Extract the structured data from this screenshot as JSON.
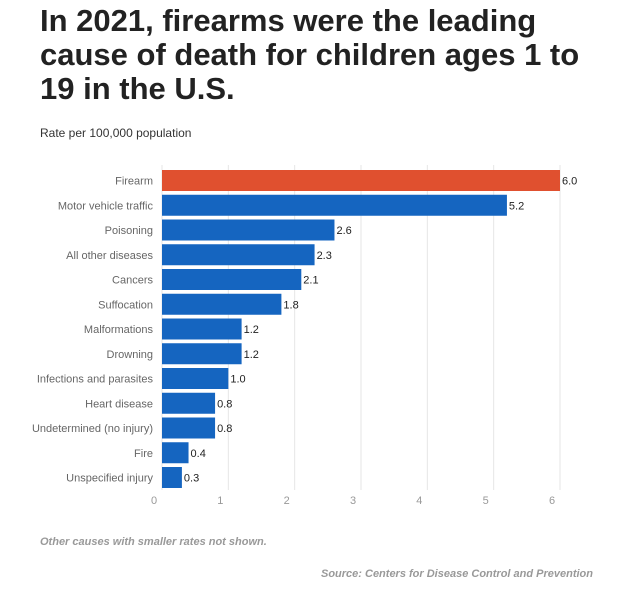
{
  "chart_data": {
    "type": "bar",
    "orientation": "horizontal",
    "title": "In 2021, firearms were the leading cause of death for children ages 1 to 19 in the U.S.",
    "subtitle": "Rate per 100,000 population",
    "categories": [
      "Firearm",
      "Motor vehicle traffic",
      "Poisoning",
      "All other diseases",
      "Cancers",
      "Suffocation",
      "Malformations",
      "Drowning",
      "Infections and parasites",
      "Heart disease",
      "Undetermined (no injury)",
      "Fire",
      "Unspecified injury"
    ],
    "values": [
      6.0,
      5.2,
      2.6,
      2.3,
      2.1,
      1.8,
      1.2,
      1.2,
      1.0,
      0.8,
      0.8,
      0.4,
      0.3
    ],
    "value_labels": [
      "6.0",
      "5.2",
      "2.6",
      "2.3",
      "2.1",
      "1.8",
      "1.2",
      "1.2",
      "1.0",
      "0.8",
      "0.8",
      "0.4",
      "0.3"
    ],
    "highlight_index": 0,
    "colors": {
      "highlight": "#e0502f",
      "bar": "#1565c0",
      "grid": "#e6e6e6",
      "axis_text": "#999999",
      "label_text": "#666666"
    },
    "xlim": [
      0,
      6
    ],
    "xticks": [
      0,
      1,
      2,
      3,
      4,
      5,
      6
    ],
    "grid": true,
    "note": "Other causes with smaller rates not shown.",
    "source": "Source: Centers for Disease Control and Prevention"
  }
}
